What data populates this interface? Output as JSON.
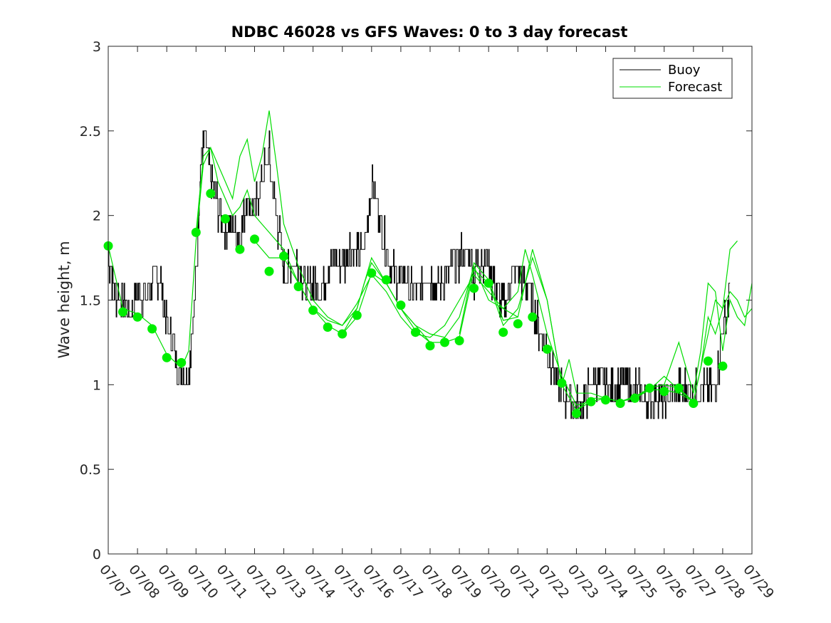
{
  "chart_data": {
    "type": "line",
    "title": "NDBC 46028 vs GFS Waves: 0 to 3 day forecast",
    "xlabel": "",
    "ylabel": "Wave height, m",
    "x_unit": "day of July (date)",
    "x_range": [
      7,
      29
    ],
    "ylim": [
      0,
      3
    ],
    "x_ticks": [
      "07/07",
      "07/08",
      "07/09",
      "07/10",
      "07/11",
      "07/12",
      "07/13",
      "07/14",
      "07/15",
      "07/16",
      "07/17",
      "07/18",
      "07/19",
      "07/20",
      "07/21",
      "07/22",
      "07/23",
      "07/24",
      "07/25",
      "07/26",
      "07/27",
      "07/28",
      "07/29"
    ],
    "y_ticks": [
      "0",
      "0.5",
      "1",
      "1.5",
      "2",
      "2.5",
      "3"
    ],
    "legend": {
      "placement": "top-right",
      "entries": [
        {
          "label": "Buoy",
          "color": "#000000"
        },
        {
          "label": "Forecast",
          "color": "#00dd00"
        }
      ]
    },
    "colors": {
      "buoy": "#000000",
      "forecast": "#00dd00",
      "marker": "#00ee00"
    },
    "buoy": {
      "x": [
        7.0,
        7.25,
        7.5,
        7.75,
        8.0,
        8.25,
        8.5,
        8.75,
        9.0,
        9.25,
        9.5,
        9.75,
        10.0,
        10.15,
        10.3,
        10.5,
        10.75,
        11.0,
        11.25,
        11.5,
        11.75,
        12.0,
        12.25,
        12.5,
        12.75,
        13.0,
        13.25,
        13.5,
        13.75,
        14.0,
        14.25,
        14.5,
        14.75,
        15.0,
        15.25,
        15.5,
        15.75,
        16.0,
        16.25,
        16.5,
        16.75,
        17.0,
        17.25,
        17.5,
        17.75,
        18.0,
        18.25,
        18.5,
        18.75,
        19.0,
        19.25,
        19.5,
        19.75,
        20.0,
        20.25,
        20.5,
        20.75,
        21.0,
        21.25,
        21.5,
        21.75,
        22.0,
        22.25,
        22.5,
        22.75,
        23.0,
        23.25,
        23.5,
        23.75,
        24.0,
        24.25,
        24.5,
        24.75,
        25.0,
        25.25,
        25.5,
        25.75,
        26.0,
        26.25,
        26.5,
        26.75,
        27.0,
        27.25,
        27.5,
        27.75,
        28.0,
        28.25
      ],
      "y": [
        1.75,
        1.55,
        1.5,
        1.4,
        1.55,
        1.5,
        1.6,
        1.65,
        1.35,
        1.2,
        1.05,
        1.1,
        1.6,
        2.3,
        2.45,
        2.2,
        2.05,
        1.9,
        1.95,
        1.85,
        2.1,
        2.0,
        2.2,
        2.35,
        2.0,
        1.65,
        1.7,
        1.75,
        1.55,
        1.6,
        1.55,
        1.7,
        1.75,
        1.7,
        1.8,
        1.75,
        1.8,
        2.2,
        2.0,
        1.8,
        1.65,
        1.6,
        1.6,
        1.55,
        1.6,
        1.65,
        1.55,
        1.65,
        1.7,
        1.75,
        1.8,
        1.65,
        1.75,
        1.7,
        1.55,
        1.45,
        1.6,
        1.7,
        1.6,
        1.5,
        1.3,
        1.2,
        1.05,
        0.95,
        0.9,
        0.85,
        0.9,
        1.0,
        1.0,
        1.0,
        0.95,
        1.0,
        1.0,
        0.95,
        0.95,
        0.9,
        0.95,
        0.9,
        0.95,
        1.0,
        0.95,
        0.95,
        1.0,
        0.95,
        1.0,
        1.3,
        1.55
      ]
    },
    "forecast_members": [
      {
        "x": [
          7.0,
          7.5,
          8.0,
          8.5,
          9.0,
          9.5,
          9.75,
          10.0,
          10.25,
          10.5,
          10.75,
          11.0,
          11.25,
          11.5,
          11.75,
          12.0,
          12.25,
          12.5,
          12.75,
          13.0,
          13.5,
          14.0,
          14.5,
          15.0,
          15.5,
          15.75,
          16.0,
          16.5,
          17.0,
          17.5,
          18.0
        ],
        "y": [
          1.82,
          1.45,
          1.42,
          1.35,
          1.18,
          1.1,
          1.2,
          1.85,
          2.3,
          2.4,
          2.2,
          2.1,
          2.0,
          2.05,
          2.15,
          2.0,
          1.95,
          1.9,
          1.85,
          1.8,
          1.6,
          1.45,
          1.38,
          1.35,
          1.45,
          1.6,
          1.72,
          1.6,
          1.45,
          1.32,
          1.25
        ]
      },
      {
        "x": [
          10.0,
          10.25,
          10.5,
          10.75,
          11.0,
          11.25,
          11.5,
          11.75,
          12.0,
          12.25,
          12.5,
          12.75,
          13.0,
          13.5,
          14.0,
          14.5,
          15.0,
          15.5,
          16.0,
          16.5,
          17.0,
          17.5,
          18.0,
          18.5,
          19.0,
          19.5,
          20.0,
          20.5,
          21.0
        ],
        "y": [
          1.9,
          2.35,
          2.4,
          2.3,
          2.2,
          2.1,
          2.35,
          2.45,
          2.2,
          2.35,
          2.62,
          2.3,
          1.95,
          1.7,
          1.5,
          1.4,
          1.35,
          1.48,
          1.65,
          1.55,
          1.4,
          1.3,
          1.28,
          1.35,
          1.5,
          1.65,
          1.55,
          1.45,
          1.4
        ]
      },
      {
        "x": [
          12.0,
          12.5,
          13.0,
          13.5,
          14.0,
          14.5,
          15.0,
          15.5,
          16.0,
          16.5,
          17.0,
          17.5,
          18.0,
          18.5,
          19.0,
          19.5,
          20.0,
          20.5,
          21.0,
          21.25,
          21.5,
          22.0,
          22.5,
          23.0,
          23.5,
          24.0
        ],
        "y": [
          1.85,
          1.75,
          1.75,
          1.6,
          1.45,
          1.35,
          1.3,
          1.45,
          1.75,
          1.6,
          1.45,
          1.35,
          1.3,
          1.28,
          1.4,
          1.7,
          1.5,
          1.45,
          1.55,
          1.8,
          1.65,
          1.3,
          1.05,
          0.88,
          0.9,
          0.92
        ]
      },
      {
        "x": [
          15.0,
          15.5,
          16.0,
          16.5,
          17.0,
          17.5,
          18.0,
          18.5,
          19.0,
          19.5,
          20.0,
          20.5,
          21.0,
          21.5,
          22.0,
          22.5,
          23.0,
          23.5,
          24.0,
          24.5,
          25.0,
          25.5,
          26.0,
          26.5,
          27.0
        ],
        "y": [
          1.3,
          1.4,
          1.66,
          1.6,
          1.45,
          1.35,
          1.25,
          1.25,
          1.28,
          1.68,
          1.6,
          1.35,
          1.45,
          1.75,
          1.5,
          1.0,
          0.85,
          0.92,
          0.92,
          0.9,
          0.92,
          0.97,
          0.97,
          0.95,
          0.9
        ]
      },
      {
        "x": [
          19.0,
          19.5,
          20.0,
          20.5,
          21.0,
          21.5,
          22.0,
          22.5,
          22.75,
          23.0,
          23.5,
          24.0,
          24.5,
          25.0,
          25.5,
          26.0,
          26.5,
          27.0,
          27.5,
          27.75,
          28.0,
          28.25,
          28.5
        ],
        "y": [
          1.3,
          1.72,
          1.62,
          1.38,
          1.4,
          1.8,
          1.5,
          1.0,
          1.15,
          0.95,
          0.95,
          0.92,
          0.9,
          0.93,
          0.97,
          1.05,
          0.97,
          0.9,
          1.3,
          1.5,
          1.45,
          1.8,
          1.85
        ]
      },
      {
        "x": [
          23.0,
          23.5,
          24.0,
          24.5,
          25.0,
          25.5,
          26.0,
          26.5,
          27.0,
          27.25,
          27.5,
          27.75,
          28.0,
          28.25,
          28.5,
          28.75,
          29.0
        ],
        "y": [
          0.85,
          0.9,
          0.92,
          0.9,
          0.93,
          0.98,
          1.0,
          1.25,
          0.95,
          1.2,
          1.6,
          1.55,
          1.2,
          1.5,
          1.4,
          1.35,
          1.6
        ]
      },
      {
        "x": [
          26.0,
          26.5,
          27.0,
          27.25,
          27.5,
          27.75,
          28.0,
          28.25,
          28.5,
          28.75,
          29.0
        ],
        "y": [
          1.0,
          0.98,
          0.9,
          1.1,
          1.4,
          1.3,
          1.45,
          1.55,
          1.5,
          1.4,
          1.45
        ]
      }
    ],
    "markers": {
      "x": [
        7.0,
        7.5,
        8.0,
        8.5,
        9.0,
        9.5,
        10.0,
        10.5,
        11.0,
        11.5,
        12.0,
        12.5,
        13.0,
        13.5,
        14.0,
        14.5,
        15.0,
        15.5,
        16.0,
        16.5,
        17.0,
        17.5,
        18.0,
        18.5,
        19.0,
        19.5,
        20.0,
        20.5,
        21.0,
        21.5,
        22.0,
        22.5,
        23.0,
        23.5,
        24.0,
        24.5,
        25.0,
        25.5,
        26.0,
        26.5,
        27.0,
        27.5,
        28.0
      ],
      "y": [
        1.82,
        1.43,
        1.4,
        1.33,
        1.16,
        1.13,
        1.9,
        2.13,
        1.98,
        1.8,
        1.86,
        1.67,
        1.76,
        1.58,
        1.44,
        1.34,
        1.3,
        1.41,
        1.66,
        1.62,
        1.47,
        1.31,
        1.23,
        1.25,
        1.26,
        1.57,
        1.6,
        1.31,
        1.36,
        1.4,
        1.21,
        1.01,
        0.83,
        0.9,
        0.91,
        0.89,
        0.92,
        0.98,
        0.96,
        0.98,
        0.89,
        1.14,
        1.11
      ]
    }
  }
}
